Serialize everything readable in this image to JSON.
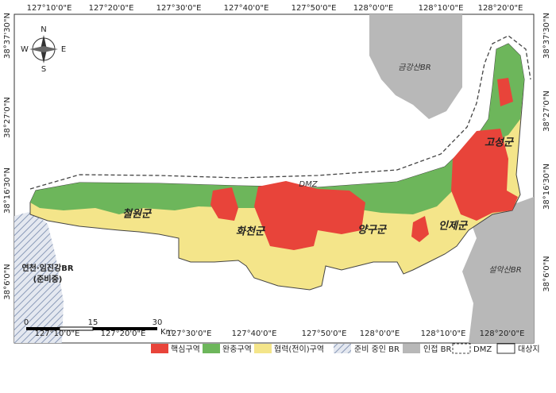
{
  "top_labels": [
    "127°10'0\"E",
    "127°20'0\"E",
    "127°30'0\"E",
    "127°40'0\"E",
    "127°50'0\"E",
    "128°0'0\"E",
    "128°10'0\"E",
    "128°20'0\"E"
  ],
  "bottom_labels": [
    "127°10'0\"E",
    "127°20'0\"E",
    "127°30'0\"E",
    "127°40'0\"E",
    "127°50'0\"E",
    "128°0'0\"E",
    "128°10'0\"E",
    "128°20'0\"E"
  ],
  "left_labels": [
    "38°37'30\"N",
    "38°27'0\"N",
    "38°16'30\"N",
    "38°6'0\"N"
  ],
  "right_labels": [
    "38°37'30\"N",
    "38°27'0\"N",
    "38°16'30\"N",
    "38°6'0\"N"
  ],
  "map_labels": {
    "geumgang": "금강산BR",
    "seorak": "설악산BR",
    "yeoncheon": "연천·임진강BR",
    "yeoncheon_note": "(준비중)",
    "cheorwon": "철원군",
    "hwacheon": "화천군",
    "yanggu": "양구군",
    "inje": "인제군",
    "goseong": "고성군",
    "dmz": "DMZ"
  },
  "scale": {
    "ticks": [
      "0",
      "15",
      "30"
    ],
    "unit": "Km"
  },
  "compass": {
    "n": "N",
    "s": "S",
    "e": "E",
    "w": "W"
  },
  "legend": [
    "핵심구역",
    "완충구역",
    "협력(전이)구역",
    "준비 중인 BR",
    "인접 BR",
    "DMZ",
    "대상지"
  ]
}
